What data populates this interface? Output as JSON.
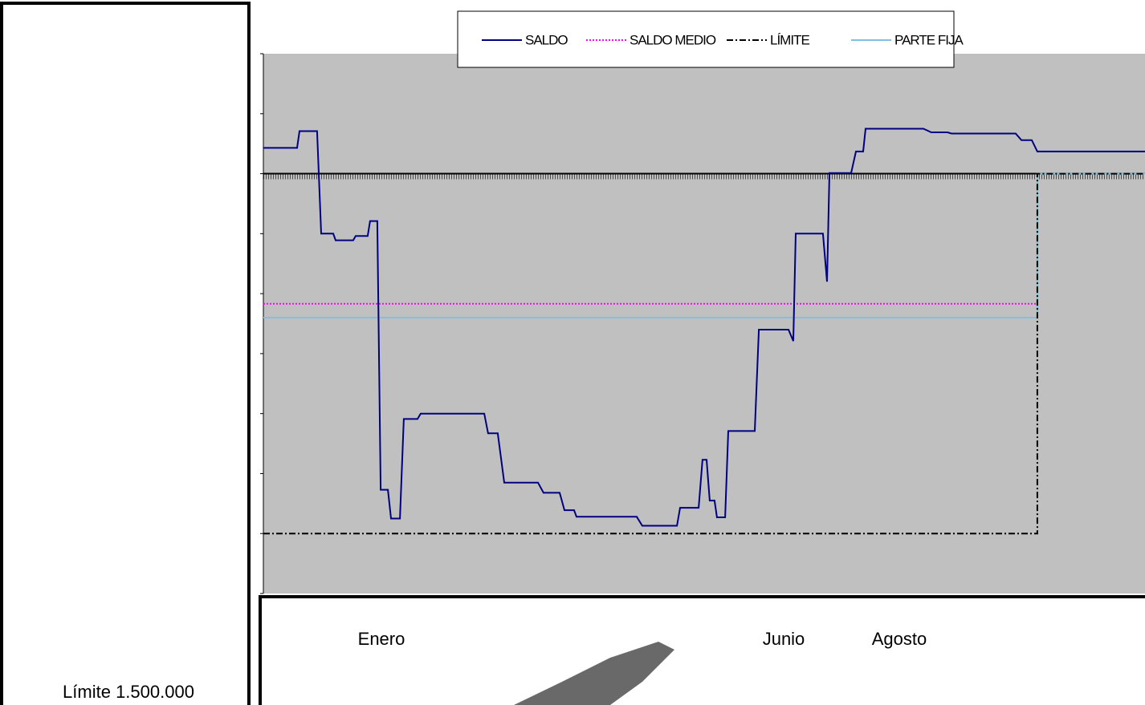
{
  "chart_data": {
    "type": "line",
    "series": [
      {
        "name": "SALDO",
        "color": "#000080",
        "style": "solid",
        "x": [
          0,
          14,
          15,
          22.3,
          24,
          29,
          30,
          37.3,
          38.3,
          43.3,
          44.3,
          47.3,
          48.7,
          51.7,
          53,
          56.7,
          58.3,
          64,
          65.3,
          91.7,
          93.3,
          97.3,
          100,
          114,
          116.3,
          123,
          125,
          129,
          130,
          155,
          157.3,
          171.7,
          173,
          180.7,
          182.3,
          184,
          185.3,
          187.3,
          188.3,
          191.7,
          193,
          204,
          205.7,
          218,
          220,
          221,
          232.3,
          234,
          235,
          244,
          246,
          249,
          250,
          274,
          277.3,
          284,
          285.7,
          312.3,
          314.7,
          319,
          321.3,
          366
        ],
        "values": [
          7.43,
          7.43,
          7.71,
          7.71,
          6.0,
          6.0,
          5.89,
          5.89,
          5.96,
          5.96,
          6.21,
          6.21,
          1.73,
          1.73,
          1.25,
          1.25,
          2.91,
          2.91,
          3.0,
          3.0,
          2.67,
          2.67,
          1.85,
          1.85,
          1.68,
          1.68,
          1.39,
          1.39,
          1.28,
          1.28,
          1.13,
          1.13,
          1.43,
          1.43,
          2.23,
          2.23,
          1.55,
          1.55,
          1.27,
          1.27,
          2.71,
          2.71,
          4.4,
          4.4,
          4.21,
          6.0,
          6.0,
          5.2,
          7.01,
          7.01,
          7.37,
          7.37,
          7.75,
          7.75,
          7.69,
          7.69,
          7.67,
          7.67,
          7.56,
          7.56,
          7.37,
          7.37
        ]
      },
      {
        "name": "SALDO MEDIO",
        "color": "#ff00ff",
        "style": "dotted",
        "x": [
          0,
          321.3
        ],
        "values": [
          4.83,
          4.83
        ]
      },
      {
        "name": "LÍMITE",
        "color": "#000000",
        "style": "dashdot",
        "x": [
          0,
          321.3,
          321.3,
          366
        ],
        "values": [
          1,
          1,
          7,
          7
        ]
      },
      {
        "name": "PARTE FIJA",
        "color": "#7fbfdf",
        "style": "solid",
        "x": [
          0,
          321.3,
          321.3,
          366
        ],
        "values": [
          4.6,
          4.6,
          7,
          7
        ]
      }
    ],
    "xlim": [
      0,
      366
    ],
    "xticks": [
      {
        "value": 49,
        "label": "Enero"
      },
      {
        "value": 216,
        "label": "Junio"
      },
      {
        "value": 264,
        "label": "Agosto"
      }
    ],
    "ylim": [
      0,
      9
    ],
    "yticks": [
      0,
      1,
      2,
      3,
      4,
      5,
      6,
      7,
      8,
      9
    ],
    "note": "Límite 1.500.000"
  }
}
